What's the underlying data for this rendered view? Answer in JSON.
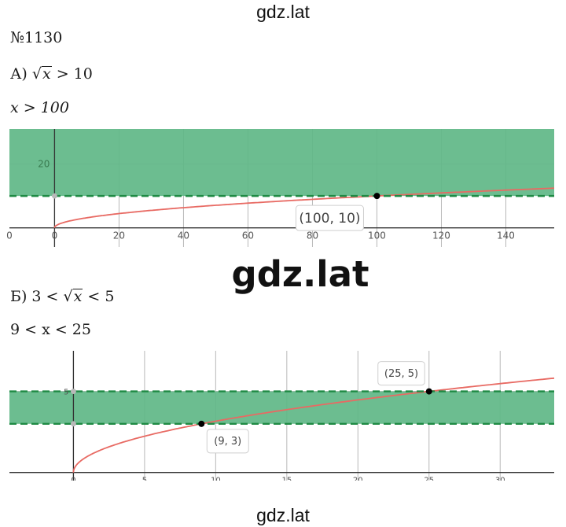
{
  "header": {
    "watermark_top": "gdz.lat",
    "watermark_mid": "gdz.lat",
    "watermark_bottom": "gdz.lat"
  },
  "problem": {
    "number": "№1130",
    "part_a": {
      "letter": "А)",
      "radicand": "x",
      "relation": " > 10",
      "answer": "x > 100"
    },
    "part_b": {
      "letter": "Б)",
      "left": "3 < ",
      "radicand": "x",
      "right": " < 5",
      "answer": "9 < x < 25"
    }
  },
  "colors": {
    "band_fill": "#5fb787",
    "band_edge": "#1f8a44",
    "curve": "#e86a63",
    "grid": "#b8b8b8",
    "axis": "#333333"
  },
  "chart_data": [
    {
      "type": "line",
      "function": "y = sqrt(x)",
      "xlim": [
        -14,
        155
      ],
      "ylim": [
        -6,
        31
      ],
      "x_ticks": [
        "0",
        "0",
        "20",
        "40",
        "60",
        "80",
        "100",
        "120",
        "140"
      ],
      "y_ticks": [
        "20"
      ],
      "shaded_region": {
        "y_from": 10,
        "y_to": 31,
        "boundary": "dashed"
      },
      "point": {
        "x": 100,
        "y": 10,
        "label": "(100, 10)"
      }
    },
    {
      "type": "line",
      "function": "y = sqrt(x)",
      "xlim": [
        -4.5,
        33.8
      ],
      "ylim": [
        -0.5,
        7.5
      ],
      "x_ticks": [
        "0",
        "5",
        "10",
        "15",
        "20",
        "25",
        "30"
      ],
      "y_ticks": [
        "5"
      ],
      "shaded_region": {
        "y_from": 3,
        "y_to": 5,
        "boundary": "dashed"
      },
      "points": [
        {
          "x": 9,
          "y": 3,
          "label": "(9, 3)"
        },
        {
          "x": 25,
          "y": 5,
          "label": "(25, 5)"
        }
      ]
    }
  ]
}
